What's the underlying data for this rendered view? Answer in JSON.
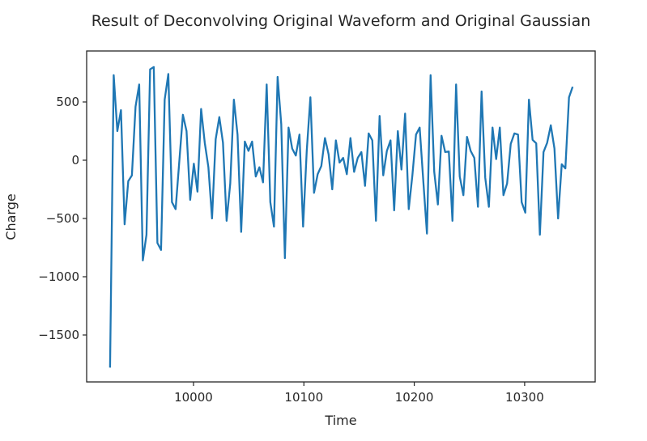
{
  "chart_data": {
    "type": "line",
    "title": "Result of Deconvolving Original Waveform and Original Gaussian",
    "xlabel": "Time",
    "ylabel": "Charge",
    "xlim": [
      9903.2,
      10363.9
    ],
    "ylim": [
      -1902.8,
      937.5
    ],
    "xticks": [
      10000,
      10100,
      10200,
      10300
    ],
    "xtick_labels": [
      "10000",
      "10100",
      "10200",
      "10300"
    ],
    "yticks": [
      500,
      0,
      -500,
      -1000,
      -1500
    ],
    "ytick_labels": [
      "500",
      "0",
      "−500",
      "−1000",
      "−1500"
    ],
    "grid": false,
    "legend": null,
    "series": [
      {
        "name": "Charge",
        "color": "#1f77b4",
        "x_start": 9924.4,
        "x_step": 3.3,
        "values": [
          -1780,
          730,
          250,
          430,
          -550,
          -180,
          -130,
          460,
          650,
          -860,
          -640,
          780,
          800,
          -710,
          -770,
          520,
          740,
          -360,
          -420,
          -15,
          390,
          250,
          -340,
          -30,
          -270,
          440,
          150,
          -60,
          -500,
          180,
          370,
          150,
          -520,
          -200,
          520,
          220,
          -615,
          160,
          80,
          160,
          -140,
          -60,
          -190,
          650,
          -360,
          -570,
          715,
          310,
          -840,
          280,
          100,
          40,
          220,
          -570,
          80,
          540,
          -280,
          -120,
          -50,
          190,
          50,
          -250,
          170,
          -20,
          20,
          -120,
          190,
          -100,
          20,
          70,
          -220,
          230,
          170,
          -520,
          380,
          -130,
          80,
          170,
          -430,
          250,
          -80,
          400,
          -420,
          -130,
          220,
          280,
          -180,
          -630,
          730,
          -100,
          -380,
          210,
          70,
          75,
          -520,
          650,
          -140,
          -300,
          200,
          80,
          20,
          -400,
          590,
          -150,
          -400,
          280,
          10,
          280,
          -300,
          -200,
          140,
          230,
          220,
          -360,
          -450,
          520,
          175,
          145,
          -640,
          70,
          150,
          300,
          100,
          -500,
          -35,
          -70,
          540,
          630
        ]
      }
    ]
  }
}
